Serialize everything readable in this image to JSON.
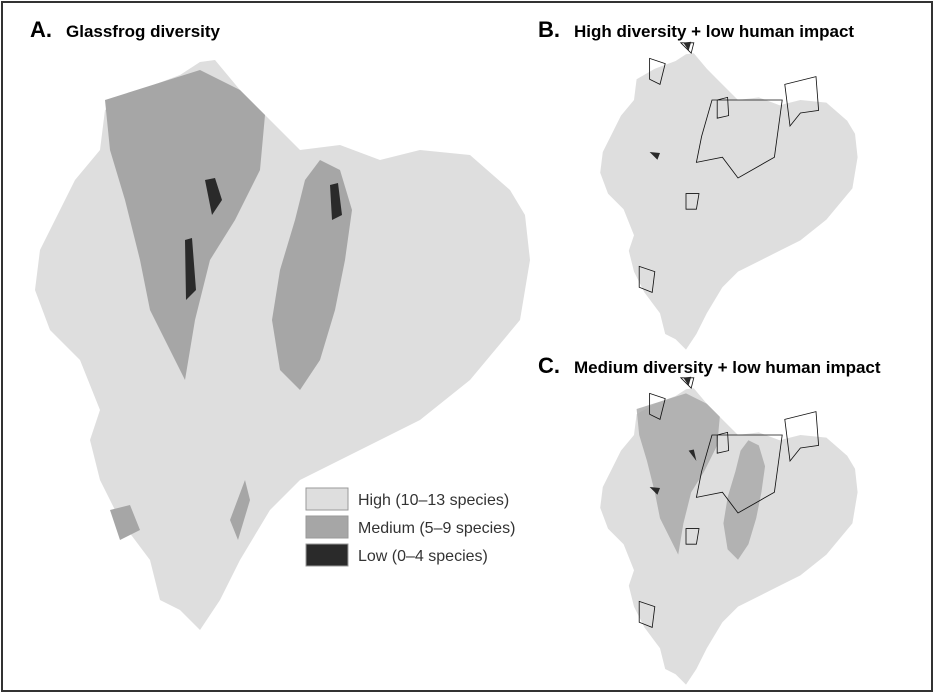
{
  "panels": [
    {
      "letter": "A.",
      "title": "Glassfrog diversity"
    },
    {
      "letter": "B.",
      "title": "High diversity + low human impact"
    },
    {
      "letter": "C.",
      "title": "Medium diversity + low human impact"
    }
  ],
  "legend": [
    {
      "label": "High (10–13 species)",
      "color": "#dedede"
    },
    {
      "label": "Medium (5–9 species)",
      "color": "#a6a6a6"
    },
    {
      "label": "Low (0–4 species)",
      "color": "#2a2a2a"
    }
  ]
}
